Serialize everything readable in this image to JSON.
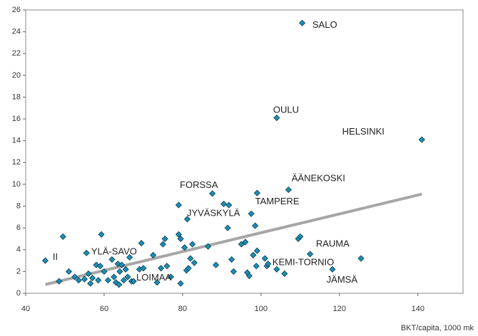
{
  "chart_data": {
    "type": "scatter",
    "x_label": "BKT/capita, 1000 mk",
    "xlim": [
      40,
      151.5
    ],
    "xticks": [
      40,
      60,
      80,
      100,
      120,
      140
    ],
    "ylim": [
      0,
      26
    ],
    "yticks": [
      0,
      2,
      4,
      6,
      8,
      10,
      12,
      14,
      16,
      18,
      20,
      22,
      24,
      26
    ],
    "grid": false,
    "series": [
      {
        "color": "#1b8fb5",
        "x": [
          45,
          48.5,
          49.5,
          51,
          52.5,
          53.5,
          55,
          55.5,
          56,
          56.5,
          57,
          58,
          58.5,
          59,
          59.3,
          60,
          61,
          62,
          62.5,
          63,
          63.5,
          63.8,
          64,
          64.5,
          65,
          65.5,
          66,
          66.5,
          67,
          67.5,
          69,
          69.5,
          70,
          72.5,
          73.5,
          74.5,
          75,
          75.5,
          76,
          77,
          79,
          79,
          79.5,
          79.5,
          80.5,
          81,
          81.2,
          81.5,
          82,
          82.5,
          83,
          86.5,
          87.6,
          88.5,
          90.5,
          91.5,
          91.8,
          92.5,
          93,
          95,
          96,
          96.5,
          97,
          97.5,
          98,
          98.5,
          98.8,
          99,
          99,
          101,
          101.5,
          101.8,
          104,
          104,
          106,
          107,
          109.5,
          110,
          110.5,
          112.5,
          118.2,
          125.5,
          141
        ],
        "values": [
          3.0,
          1.1,
          5.2,
          2.0,
          1.5,
          1.2,
          1.3,
          3.7,
          1.8,
          0.9,
          1.4,
          2.6,
          1.2,
          2.5,
          5.4,
          2.0,
          1.2,
          3.1,
          1.5,
          1.0,
          2.7,
          0.8,
          2.0,
          2.6,
          1.2,
          2.2,
          1.5,
          3.3,
          1.1,
          1.1,
          2.2,
          4.6,
          2.3,
          3.5,
          1.0,
          2.3,
          4.5,
          5.0,
          2.5,
          1.5,
          8.1,
          5.4,
          0.9,
          5.0,
          4.2,
          2.1,
          6.8,
          2.3,
          3.2,
          4.5,
          2.8,
          4.3,
          9.15,
          2.6,
          8.2,
          6.0,
          8.1,
          3.1,
          2.0,
          4.5,
          4.7,
          1.9,
          1.6,
          7.3,
          3.5,
          6.2,
          2.5,
          9.2,
          3.9,
          3.2,
          2.5,
          2.7,
          16.1,
          2.2,
          1.8,
          9.5,
          5.0,
          5.2,
          24.8,
          3.6,
          2.2,
          3.2,
          14.1
        ]
      }
    ],
    "trendline": {
      "color": "#a6a6a6",
      "x": [
        45,
        141
      ],
      "y": [
        0.8,
        9.1
      ]
    },
    "annotations": [
      {
        "text": "SALO",
        "x": 113.1,
        "y": 24.6
      },
      {
        "text": "OULU",
        "x": 103.1,
        "y": 16.8
      },
      {
        "text": "HELSINKI",
        "x": 120.7,
        "y": 14.8
      },
      {
        "text": "ÄÄNEKOSKI",
        "x": 107.8,
        "y": 10.5
      },
      {
        "text": "TAMPERE",
        "x": 98.5,
        "y": 8.4
      },
      {
        "text": "FORSSA",
        "x": 79.3,
        "y": 9.9
      },
      {
        "text": "JYVÄSKYLÄ",
        "x": 81.1,
        "y": 7.3
      },
      {
        "text": "II",
        "x": 46.9,
        "y": 3.3
      },
      {
        "text": "YLÄ-SAVO",
        "x": 56.7,
        "y": 3.8
      },
      {
        "text": "LOIMAA",
        "x": 68.2,
        "y": 1.4
      },
      {
        "text": "RAUMA",
        "x": 114,
        "y": 4.5
      },
      {
        "text": "KEMI-TORNIO",
        "x": 102.9,
        "y": 2.8
      },
      {
        "text": "JÄMSÄ",
        "x": 116.7,
        "y": 1.2
      }
    ]
  }
}
